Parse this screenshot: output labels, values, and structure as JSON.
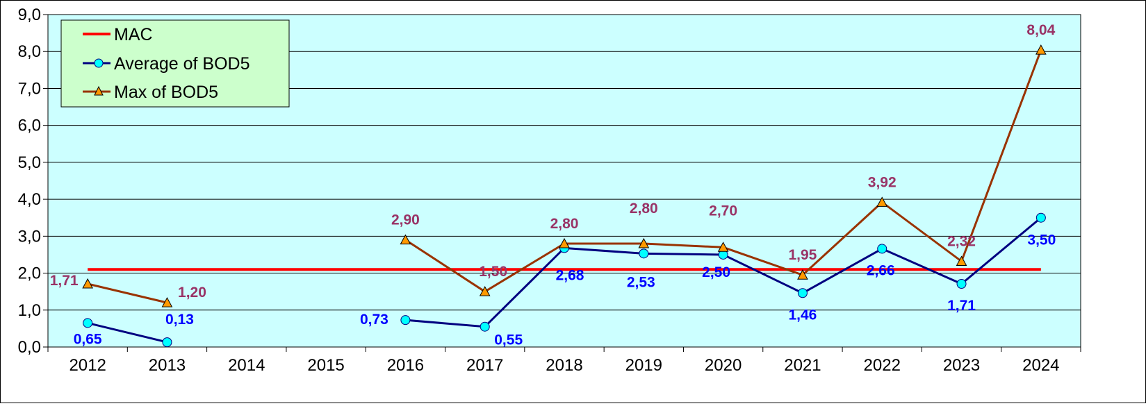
{
  "chart_data": {
    "type": "line",
    "categories": [
      "2012",
      "2013",
      "2014",
      "2015",
      "2016",
      "2017",
      "2018",
      "2019",
      "2020",
      "2021",
      "2022",
      "2023",
      "2024"
    ],
    "ylim": [
      0,
      9
    ],
    "yticks": [
      "0,0",
      "1,0",
      "2,0",
      "3,0",
      "4,0",
      "5,0",
      "6,0",
      "7,0",
      "8,0",
      "9,0"
    ],
    "grid": true,
    "legend_position": "top-left",
    "colors": {
      "plot_bg": "#CCFFFF",
      "legend_bg": "#CCFFCC"
    },
    "series": [
      {
        "name": "MAC",
        "color": "#FF0000",
        "marker": "none",
        "values": [
          2.1,
          2.1,
          2.1,
          2.1,
          2.1,
          2.1,
          2.1,
          2.1,
          2.1,
          2.1,
          2.1,
          2.1,
          2.1
        ]
      },
      {
        "name": "Average of BOD5",
        "color": "#000080",
        "marker": "circle",
        "marker_color": "#00FFFF",
        "label_color": "#0000FF",
        "values": [
          0.65,
          0.13,
          null,
          null,
          0.73,
          0.55,
          2.68,
          2.53,
          2.5,
          1.46,
          2.66,
          1.71,
          3.5
        ],
        "labels": [
          "0,65",
          "0,13",
          null,
          null,
          "0,73",
          "0,55",
          "2,68",
          "2,53",
          "2,50",
          "1,46",
          "2,66",
          "1,71",
          "3,50"
        ]
      },
      {
        "name": "Max of BOD5",
        "color": "#993300",
        "marker": "triangle",
        "marker_color": "#FF9900",
        "label_color": "#993366",
        "values": [
          1.71,
          1.2,
          null,
          null,
          2.9,
          1.5,
          2.8,
          2.8,
          2.7,
          1.95,
          3.92,
          2.32,
          8.04
        ],
        "labels": [
          "1,71",
          "1,20",
          null,
          null,
          "2,90",
          "1,50",
          "2,80",
          "2,80",
          "2,70",
          "1,95",
          "3,92",
          "2,32",
          "8,04"
        ]
      }
    ]
  }
}
